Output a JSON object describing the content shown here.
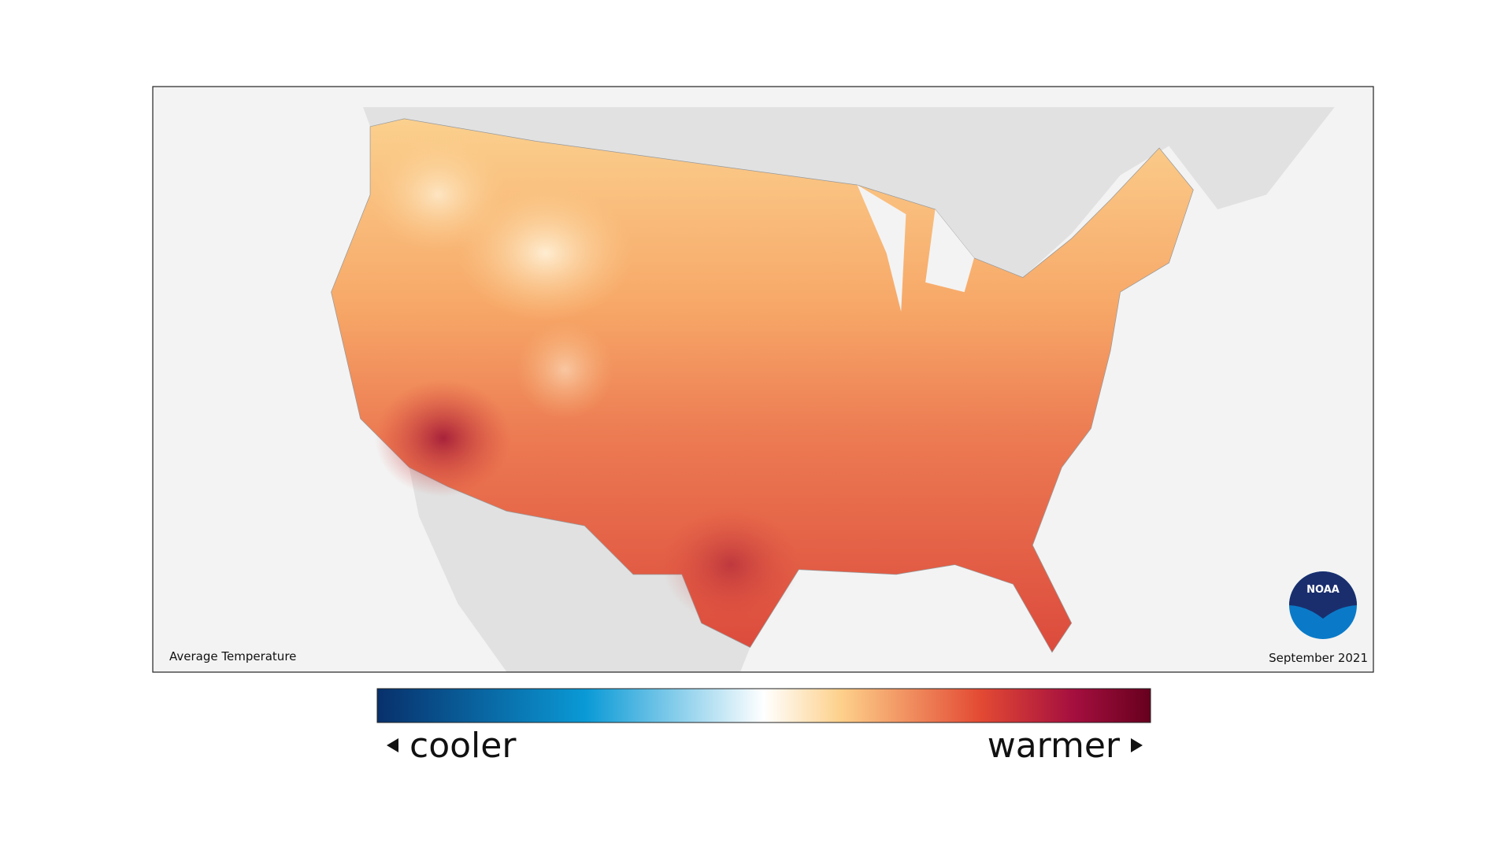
{
  "map": {
    "caption": "Average Temperature",
    "date": "September 2021",
    "logo": "NOAA"
  },
  "legend": {
    "low_label": "cooler",
    "high_label": "warmer"
  }
}
